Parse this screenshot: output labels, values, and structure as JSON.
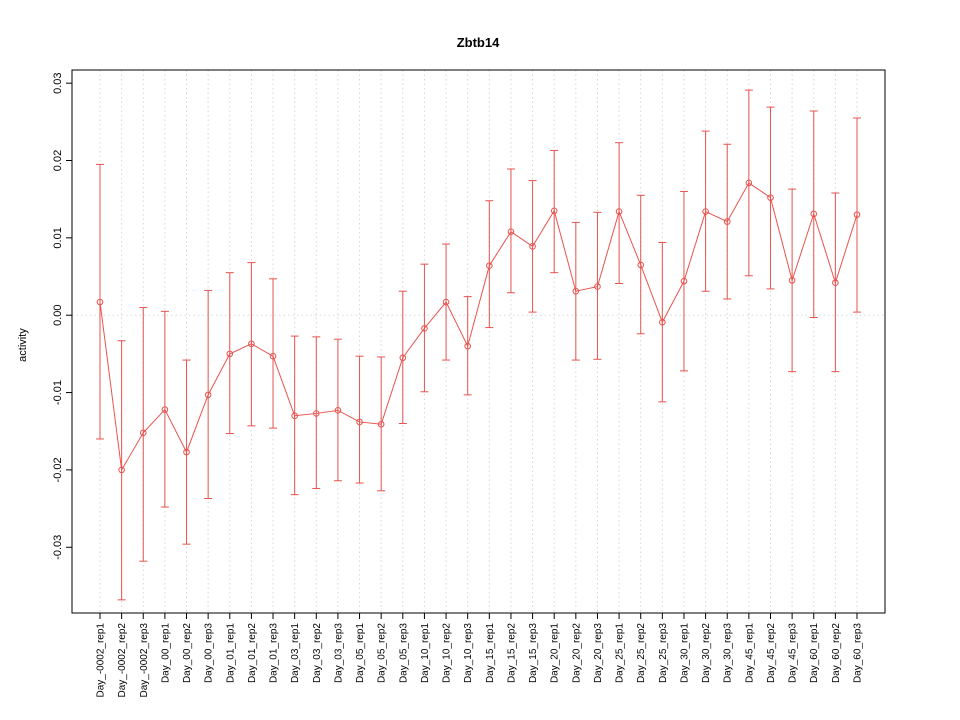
{
  "chart_data": {
    "type": "line",
    "title": "Zbtb14",
    "xlabel": "",
    "ylabel": "activity",
    "ylim": [
      -0.0385,
      0.0317
    ],
    "yticks": [
      -0.03,
      -0.02,
      -0.01,
      0,
      0.01,
      0.02,
      0.03
    ],
    "ytick_labels": [
      "-0.03",
      "-0.02",
      "-0.01",
      "0.00",
      "0.01",
      "0.02",
      "0.03"
    ],
    "grid": "vertical-dotted-per-category-plus-dotted-zero-line",
    "legend_position": "none",
    "colors": {
      "series": "#e8534e",
      "grid": "#d6d6d6",
      "axis": "#000000",
      "background": "#ffffff"
    },
    "categories": [
      "Day_-0002_rep1",
      "Day_-0002_rep2",
      "Day_-0002_rep3",
      "Day_00_rep1",
      "Day_00_rep2",
      "Day_00_rep3",
      "Day_01_rep1",
      "Day_01_rep2",
      "Day_01_rep3",
      "Day_03_rep1",
      "Day_03_rep2",
      "Day_03_rep3",
      "Day_05_rep1",
      "Day_05_rep2",
      "Day_05_rep3",
      "Day_10_rep1",
      "Day_10_rep2",
      "Day_10_rep3",
      "Day_15_rep1",
      "Day_15_rep2",
      "Day_15_rep3",
      "Day_20_rep1",
      "Day_20_rep2",
      "Day_20_rep3",
      "Day_25_rep1",
      "Day_25_rep2",
      "Day_25_rep3",
      "Day_30_rep1",
      "Day_30_rep2",
      "Day_30_rep3",
      "Day_45_rep1",
      "Day_45_rep2",
      "Day_45_rep3",
      "Day_60_rep1",
      "Day_60_rep2",
      "Day_60_rep3"
    ],
    "series": [
      {
        "name": "activity",
        "marker": "open-circle",
        "values": [
          0.0017,
          -0.02,
          -0.0152,
          -0.0122,
          -0.0177,
          -0.0103,
          -0.005,
          -0.0037,
          -0.0053,
          -0.013,
          -0.0127,
          -0.0123,
          -0.0138,
          -0.0141,
          -0.0055,
          -0.0017,
          0.0017,
          -0.004,
          0.0064,
          0.0108,
          0.0089,
          0.0135,
          0.0031,
          0.0037,
          0.0134,
          0.0065,
          -0.0009,
          0.0044,
          0.0134,
          0.0121,
          0.0171,
          0.0152,
          0.0045,
          0.0131,
          0.0042,
          0.013
        ],
        "lower": [
          -0.016,
          -0.0368,
          -0.0318,
          -0.0248,
          -0.0296,
          -0.0237,
          -0.0153,
          -0.0143,
          -0.0146,
          -0.0232,
          -0.0224,
          -0.0214,
          -0.0217,
          -0.0227,
          -0.014,
          -0.0099,
          -0.0058,
          -0.0103,
          -0.0016,
          0.0029,
          0.0004,
          0.0055,
          -0.0058,
          -0.0057,
          0.0041,
          -0.0024,
          -0.0112,
          -0.0072,
          0.0031,
          0.0021,
          0.0051,
          0.0034,
          -0.0073,
          -0.0003,
          -0.0073,
          0.0004
        ],
        "upper": [
          0.0195,
          -0.0033,
          0.001,
          0.0005,
          -0.0058,
          0.0032,
          0.0055,
          0.0068,
          0.0047,
          -0.0027,
          -0.0028,
          -0.0031,
          -0.0053,
          -0.0054,
          0.0031,
          0.0066,
          0.0092,
          0.0024,
          0.0148,
          0.0189,
          0.0174,
          0.0213,
          0.012,
          0.0133,
          0.0223,
          0.0155,
          0.0094,
          0.016,
          0.0238,
          0.0221,
          0.0291,
          0.0269,
          0.0163,
          0.0264,
          0.0158,
          0.0255
        ]
      }
    ]
  }
}
